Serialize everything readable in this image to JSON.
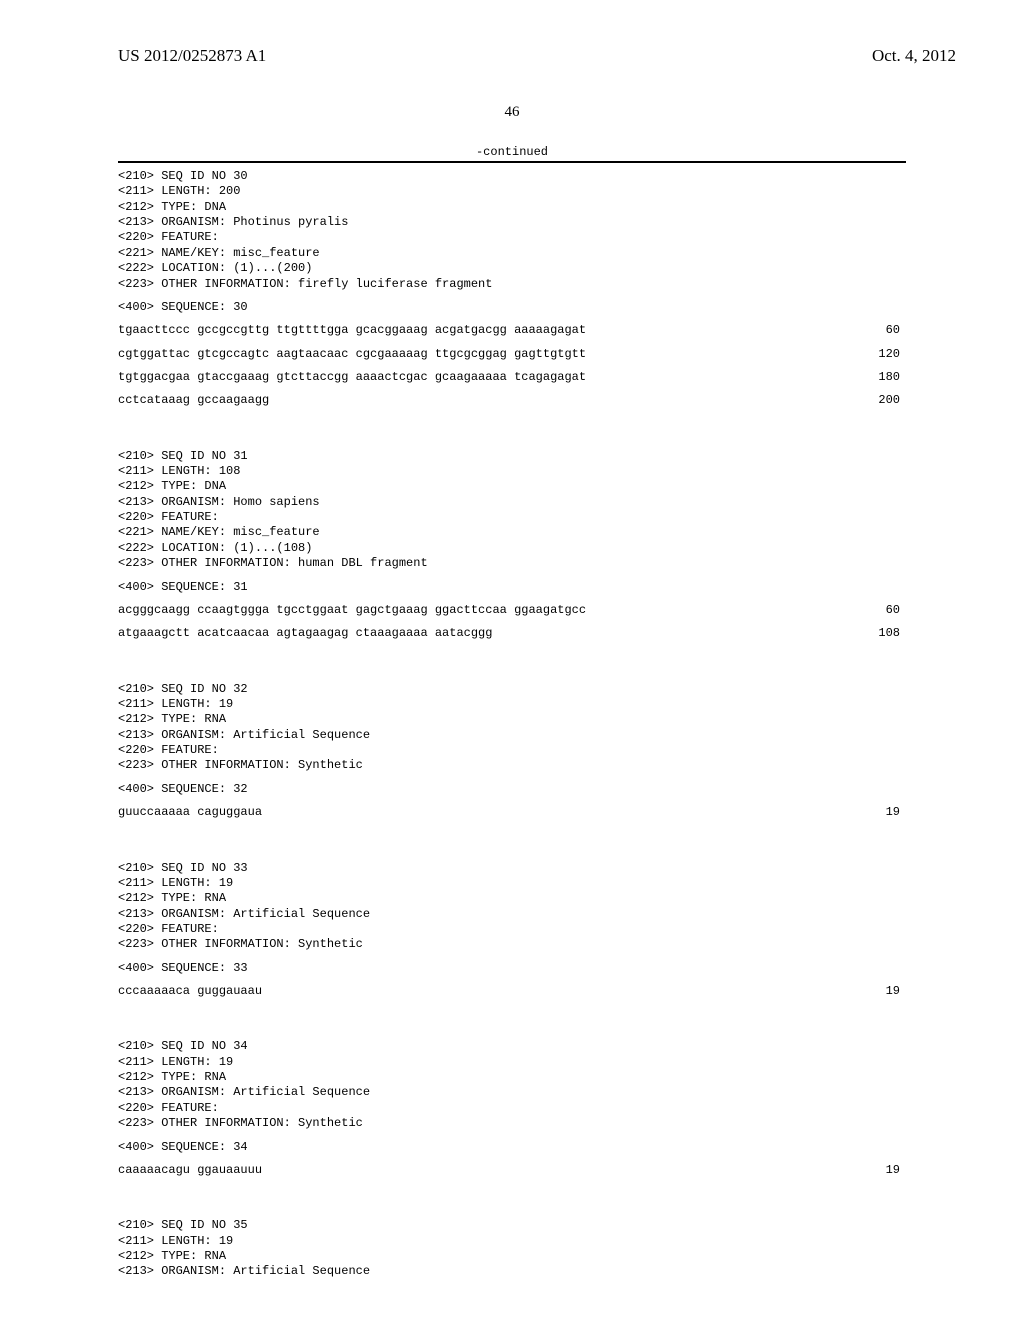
{
  "header": {
    "pub_number": "US 2012/0252873 A1",
    "pub_date": "Oct. 4, 2012"
  },
  "page_number": "46",
  "continued_label": "-continued",
  "entries": [
    {
      "meta": [
        "<210> SEQ ID NO 30",
        "<211> LENGTH: 200",
        "<212> TYPE: DNA",
        "<213> ORGANISM: Photinus pyralis",
        "<220> FEATURE:",
        "<221> NAME/KEY: misc_feature",
        "<222> LOCATION: (1)...(200)",
        "<223> OTHER INFORMATION: firefly luciferase fragment"
      ],
      "seq_header": "<400> SEQUENCE: 30",
      "sequence": [
        {
          "text": "tgaacttccc gccgccgttg ttgttttgga gcacggaaag acgatgacgg aaaaagagat",
          "num": "60"
        },
        {
          "text": "cgtggattac gtcgccagtc aagtaacaac cgcgaaaaag ttgcgcggag gagttgtgtt",
          "num": "120"
        },
        {
          "text": "tgtggacgaa gtaccgaaag gtcttaccgg aaaactcgac gcaagaaaaa tcagagagat",
          "num": "180"
        },
        {
          "text": "cctcataaag gccaagaagg",
          "num": "200"
        }
      ]
    },
    {
      "meta": [
        "<210> SEQ ID NO 31",
        "<211> LENGTH: 108",
        "<212> TYPE: DNA",
        "<213> ORGANISM: Homo sapiens",
        "<220> FEATURE:",
        "<221> NAME/KEY: misc_feature",
        "<222> LOCATION: (1)...(108)",
        "<223> OTHER INFORMATION: human DBL fragment"
      ],
      "seq_header": "<400> SEQUENCE: 31",
      "sequence": [
        {
          "text": "acgggcaagg ccaagtggga tgcctggaat gagctgaaag ggacttccaa ggaagatgcc",
          "num": "60"
        },
        {
          "text": "atgaaagctt acatcaacaa agtagaagag ctaaagaaaa aatacggg",
          "num": "108"
        }
      ]
    },
    {
      "meta": [
        "<210> SEQ ID NO 32",
        "<211> LENGTH: 19",
        "<212> TYPE: RNA",
        "<213> ORGANISM: Artificial Sequence",
        "<220> FEATURE:",
        "<223> OTHER INFORMATION: Synthetic"
      ],
      "seq_header": "<400> SEQUENCE: 32",
      "sequence": [
        {
          "text": "guuccaaaaa caguggaua",
          "num": "19"
        }
      ]
    },
    {
      "meta": [
        "<210> SEQ ID NO 33",
        "<211> LENGTH: 19",
        "<212> TYPE: RNA",
        "<213> ORGANISM: Artificial Sequence",
        "<220> FEATURE:",
        "<223> OTHER INFORMATION: Synthetic"
      ],
      "seq_header": "<400> SEQUENCE: 33",
      "sequence": [
        {
          "text": "cccaaaaaca guggauaau",
          "num": "19"
        }
      ]
    },
    {
      "meta": [
        "<210> SEQ ID NO 34",
        "<211> LENGTH: 19",
        "<212> TYPE: RNA",
        "<213> ORGANISM: Artificial Sequence",
        "<220> FEATURE:",
        "<223> OTHER INFORMATION: Synthetic"
      ],
      "seq_header": "<400> SEQUENCE: 34",
      "sequence": [
        {
          "text": "caaaaacagu ggauaauuu",
          "num": "19"
        }
      ]
    },
    {
      "meta": [
        "<210> SEQ ID NO 35",
        "<211> LENGTH: 19",
        "<212> TYPE: RNA",
        "<213> ORGANISM: Artificial Sequence"
      ],
      "seq_header": "",
      "sequence": []
    }
  ]
}
